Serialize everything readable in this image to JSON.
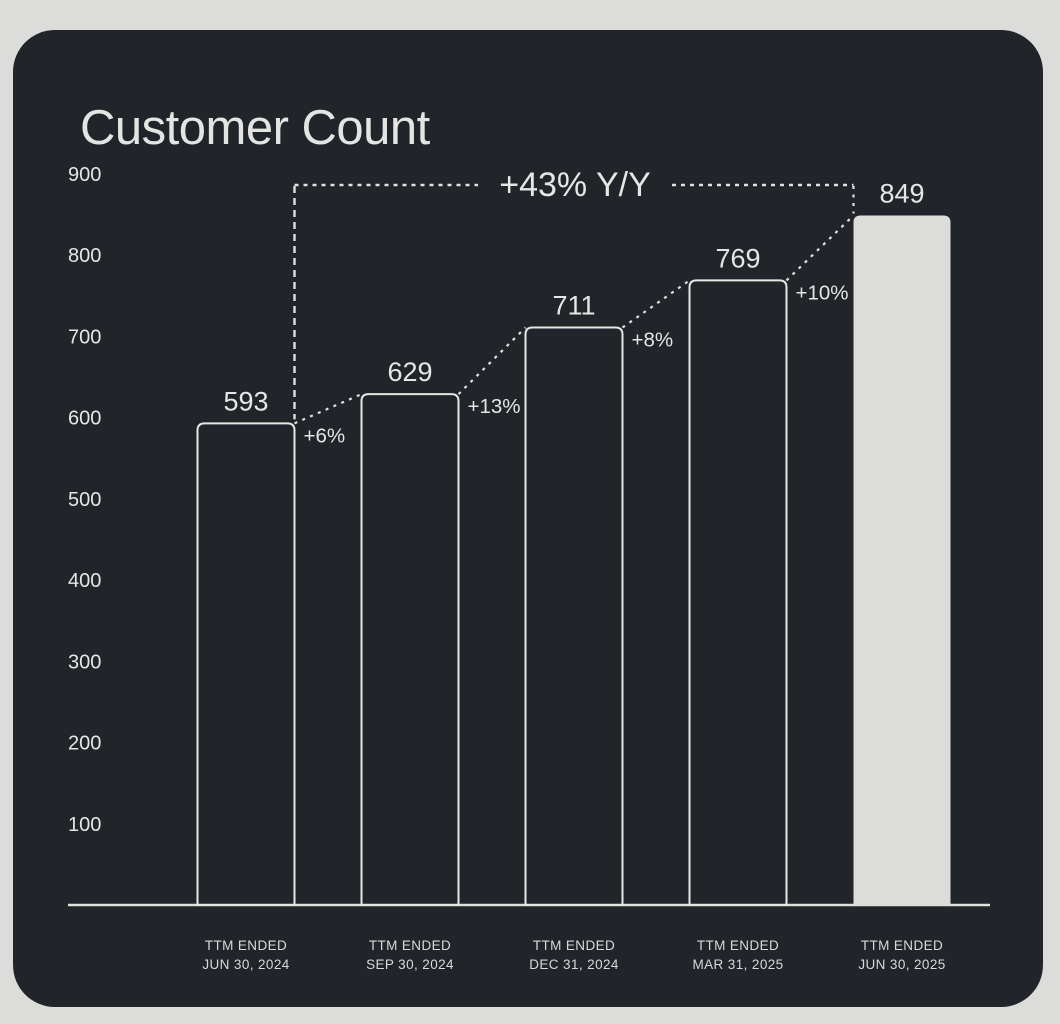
{
  "title": "Customer Count",
  "colors": {
    "page_bg": "#dcdcda",
    "card_bg": "#212429",
    "text_light": "#e6e6e4",
    "text_muted": "#d9d9d7",
    "bar_outline": "#e6e6e4",
    "highlight_bar_fill": "#dcdcda",
    "axis_line": "#dfdfdd",
    "annotation_line": "#e0e0de"
  },
  "chart_data": {
    "type": "bar",
    "title": "Customer Count",
    "categories": [
      "TTM ENDED JUN 30, 2024",
      "TTM ENDED SEP 30, 2024",
      "TTM ENDED DEC 31, 2024",
      "TTM ENDED MAR 31, 2025",
      "TTM ENDED JUN 30, 2025"
    ],
    "category_lines": [
      {
        "line1": "TTM ENDED",
        "line2": "JUN 30, 2024"
      },
      {
        "line1": "TTM ENDED",
        "line2": "SEP 30, 2024"
      },
      {
        "line1": "TTM ENDED",
        "line2": "DEC 31, 2024"
      },
      {
        "line1": "TTM ENDED",
        "line2": "MAR 31, 2025"
      },
      {
        "line1": "TTM ENDED",
        "line2": "JUN 30, 2025"
      }
    ],
    "values": [
      593,
      629,
      711,
      769,
      849
    ],
    "value_labels": [
      "593",
      "629",
      "711",
      "769",
      "849"
    ],
    "growth_labels": [
      "+6%",
      "+13%",
      "+8%",
      "+10%"
    ],
    "yoy_annotation": "+43% Y/Y",
    "y_ticks": [
      900,
      800,
      700,
      600,
      500,
      400,
      300,
      200,
      100
    ],
    "ylim": [
      0,
      930
    ],
    "xlabel": "",
    "ylabel": "",
    "grid": false,
    "legend": false,
    "highlight_index": 4,
    "bar_style": "outlined-except-highlight"
  }
}
